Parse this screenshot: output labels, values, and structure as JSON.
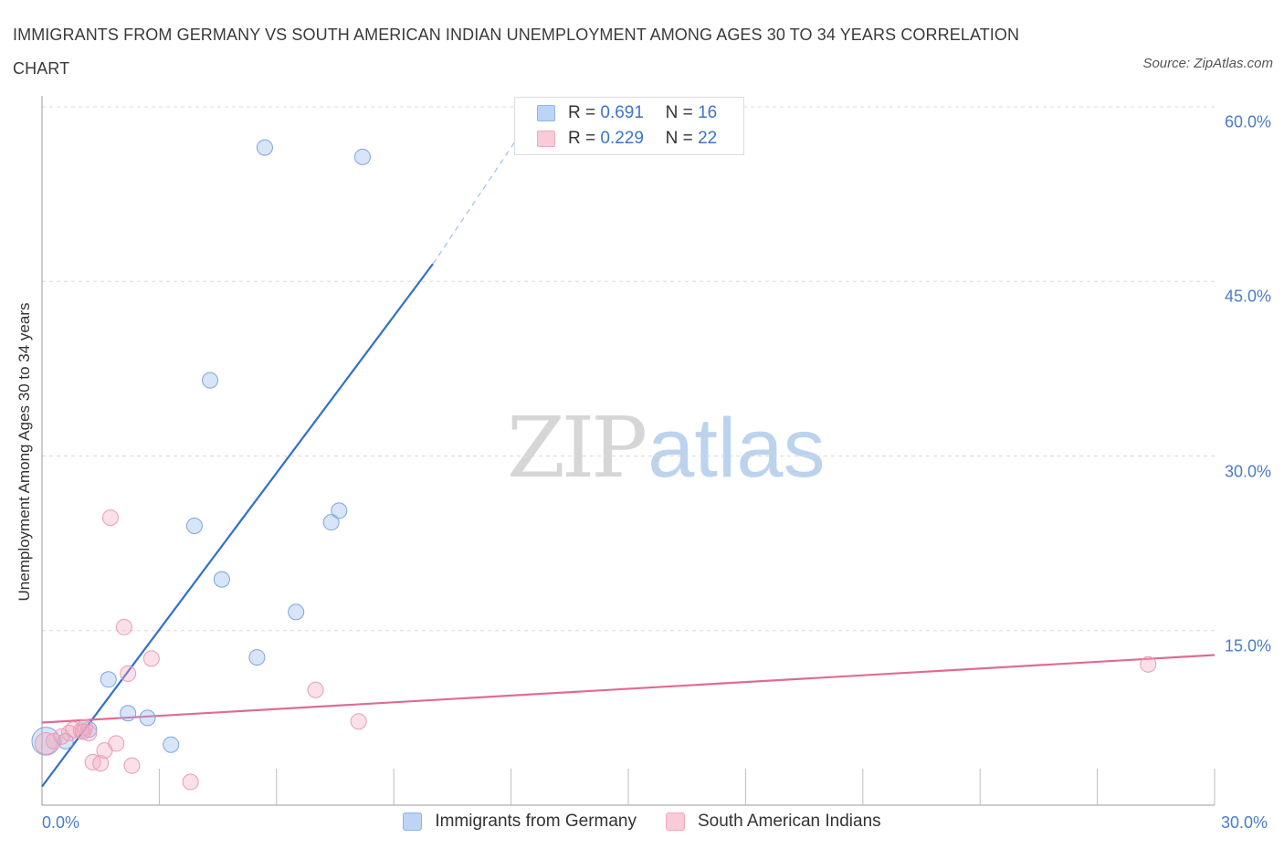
{
  "title": "IMMIGRANTS FROM GERMANY VS SOUTH AMERICAN INDIAN UNEMPLOYMENT AMONG AGES 30 TO 34 YEARS CORRELATION CHART",
  "source": "Source: ZipAtlas.com",
  "watermark": {
    "zip": "ZIP",
    "atlas": "atlas"
  },
  "stats": [
    {
      "r_label": "R =",
      "r": "0.691",
      "n_label": "N =",
      "n": "16"
    },
    {
      "r_label": "R =",
      "r": "0.229",
      "n_label": "N =",
      "n": "22"
    }
  ],
  "legend": [
    "Immigrants from Germany",
    "South American Indians"
  ],
  "colors": {
    "germany": "#8fb4e8",
    "germany_line": "#2f70cc",
    "sai": "#f2a8bf",
    "sai_line": "#e06b94",
    "tick": "#4a7cc9"
  },
  "chart_data": {
    "type": "scatter",
    "xlabel": "",
    "ylabel": "Unemployment Among Ages 30 to 34 years",
    "xlim": [
      0,
      30
    ],
    "ylim": [
      0,
      60
    ],
    "x_ticks": [
      "0.0%",
      "30.0%"
    ],
    "y_ticks": [
      {
        "value": 15,
        "label": "15.0%"
      },
      {
        "value": 30,
        "label": "30.0%"
      },
      {
        "value": 45,
        "label": "45.0%"
      },
      {
        "value": 60,
        "label": "60.0%"
      }
    ],
    "series": [
      {
        "name": "Immigrants from Germany",
        "r": 0.691,
        "n": 16,
        "points": [
          {
            "x": 0.1,
            "y": 5.5,
            "s": 1.8
          },
          {
            "x": 0.6,
            "y": 5.5
          },
          {
            "x": 1.2,
            "y": 6.5
          },
          {
            "x": 1.7,
            "y": 10.8
          },
          {
            "x": 2.2,
            "y": 7.9
          },
          {
            "x": 2.7,
            "y": 7.5
          },
          {
            "x": 3.3,
            "y": 5.2
          },
          {
            "x": 3.9,
            "y": 24.0
          },
          {
            "x": 4.3,
            "y": 36.5
          },
          {
            "x": 4.6,
            "y": 19.4
          },
          {
            "x": 5.5,
            "y": 12.7
          },
          {
            "x": 5.7,
            "y": 56.5
          },
          {
            "x": 6.5,
            "y": 16.6
          },
          {
            "x": 7.4,
            "y": 24.3
          },
          {
            "x": 7.6,
            "y": 25.3
          },
          {
            "x": 8.2,
            "y": 55.7
          }
        ],
        "trend": {
          "x0": 0.0,
          "y0": 1.6,
          "x1": 10.0,
          "y1": 46.5,
          "x2": 12.3,
          "y2": 58.0
        }
      },
      {
        "name": "South American Indians",
        "r": 0.229,
        "n": 22,
        "points": [
          {
            "x": 0.1,
            "y": 5.3,
            "s": 1.4
          },
          {
            "x": 0.3,
            "y": 5.5
          },
          {
            "x": 0.5,
            "y": 5.9
          },
          {
            "x": 0.7,
            "y": 6.2
          },
          {
            "x": 0.8,
            "y": 6.5
          },
          {
            "x": 1.0,
            "y": 6.4
          },
          {
            "x": 1.1,
            "y": 6.7
          },
          {
            "x": 1.2,
            "y": 6.2
          },
          {
            "x": 1.3,
            "y": 3.7
          },
          {
            "x": 1.5,
            "y": 3.6
          },
          {
            "x": 1.6,
            "y": 4.7
          },
          {
            "x": 1.9,
            "y": 5.3
          },
          {
            "x": 1.75,
            "y": 24.7
          },
          {
            "x": 2.1,
            "y": 15.3
          },
          {
            "x": 2.2,
            "y": 11.3
          },
          {
            "x": 2.3,
            "y": 3.4
          },
          {
            "x": 2.8,
            "y": 12.6
          },
          {
            "x": 3.8,
            "y": 2.0
          },
          {
            "x": 7.0,
            "y": 9.9
          },
          {
            "x": 8.1,
            "y": 7.2
          },
          {
            "x": 28.3,
            "y": 12.1
          },
          {
            "x": 1.05,
            "y": 6.3
          }
        ],
        "trend": {
          "x0": 0.0,
          "y0": 7.1,
          "x1": 30.0,
          "y1": 12.9
        }
      }
    ]
  }
}
